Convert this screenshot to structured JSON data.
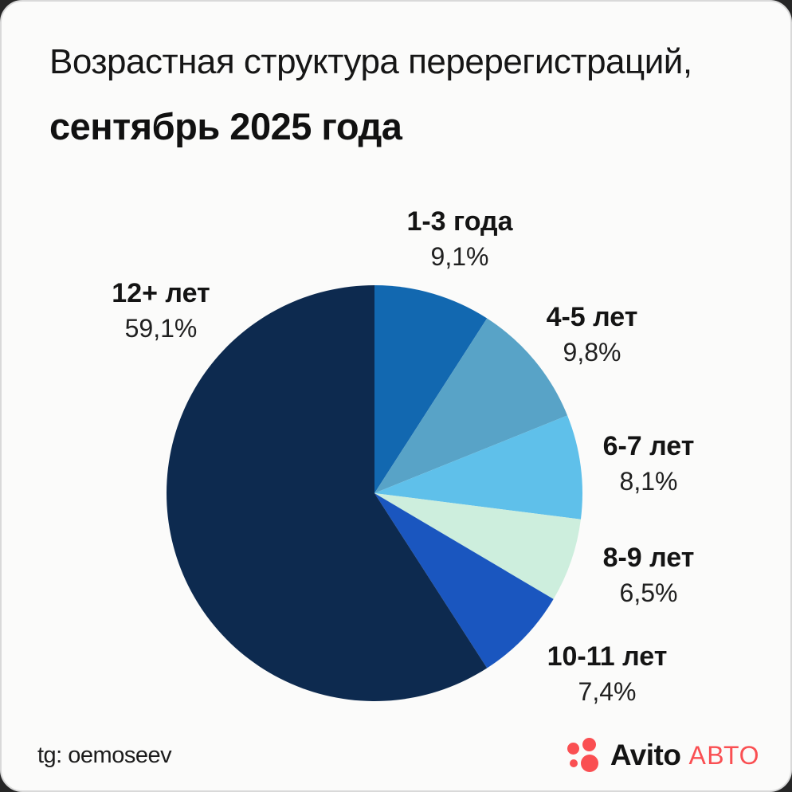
{
  "header": {
    "title_line1": "Возрастная структура перерегистраций,",
    "title_line2": "сентябрь 2025 года"
  },
  "chart_data": {
    "type": "pie",
    "title": "Возрастная структура перерегистраций, сентябрь 2025 года",
    "unit": "%",
    "start_angle_deg": 0,
    "direction": "clockwise",
    "legend_position": "labels-around-pie",
    "slices": [
      {
        "label": "1-3 года",
        "value": 9.1,
        "value_label": "9,1%",
        "color": "#1268b0"
      },
      {
        "label": "4-5 лет",
        "value": 9.8,
        "value_label": "9,8%",
        "color": "#58a3c7"
      },
      {
        "label": "6-7 лет",
        "value": 8.1,
        "value_label": "8,1%",
        "color": "#5fc0ea"
      },
      {
        "label": "8-9 лет",
        "value": 6.5,
        "value_label": "6,5%",
        "color": "#cdeedd"
      },
      {
        "label": "10-11 лет",
        "value": 7.4,
        "value_label": "7,4%",
        "color": "#1a56bf"
      },
      {
        "label": "12+ лет",
        "value": 59.1,
        "value_label": "59,1%",
        "color": "#0d2a4f"
      }
    ]
  },
  "footer": {
    "credit": "tg: oemoseev"
  },
  "logo": {
    "brand": "Avito",
    "section": "АВТО",
    "accent_color": "#fa4f52",
    "text_color": "#141414"
  }
}
